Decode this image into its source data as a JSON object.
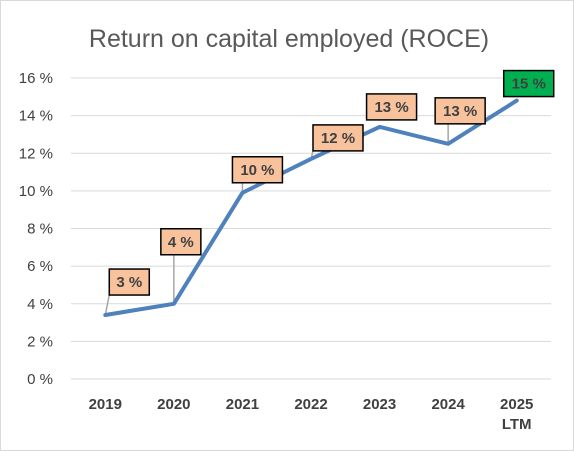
{
  "chart_data": {
    "type": "line",
    "title": "Return on capital employed (ROCE)",
    "categories": [
      [
        "2019"
      ],
      [
        "2020"
      ],
      [
        "2021"
      ],
      [
        "2022"
      ],
      [
        "2023"
      ],
      [
        "2024"
      ],
      [
        "2025",
        "LTM"
      ]
    ],
    "values": [
      3.4,
      4.0,
      9.9,
      11.7,
      13.4,
      12.5,
      14.8
    ],
    "data_labels": [
      "3 %",
      "4 %",
      "10 %",
      "12 %",
      "13 %",
      "13 %",
      "15 %"
    ],
    "y_ticks": [
      "0 %",
      "2 %",
      "4 %",
      "6 %",
      "8 %",
      "10 %",
      "12 %",
      "14 %",
      "16 %"
    ],
    "ylim": [
      0,
      16
    ],
    "grid": true,
    "colors": {
      "line": "#4f81bd",
      "label_fill": "#f8c29d",
      "label_highlight_fill": "#00b050",
      "label_border": "#000000",
      "leader": "#a6a6a6",
      "gridline": "#d9d9d9"
    }
  }
}
